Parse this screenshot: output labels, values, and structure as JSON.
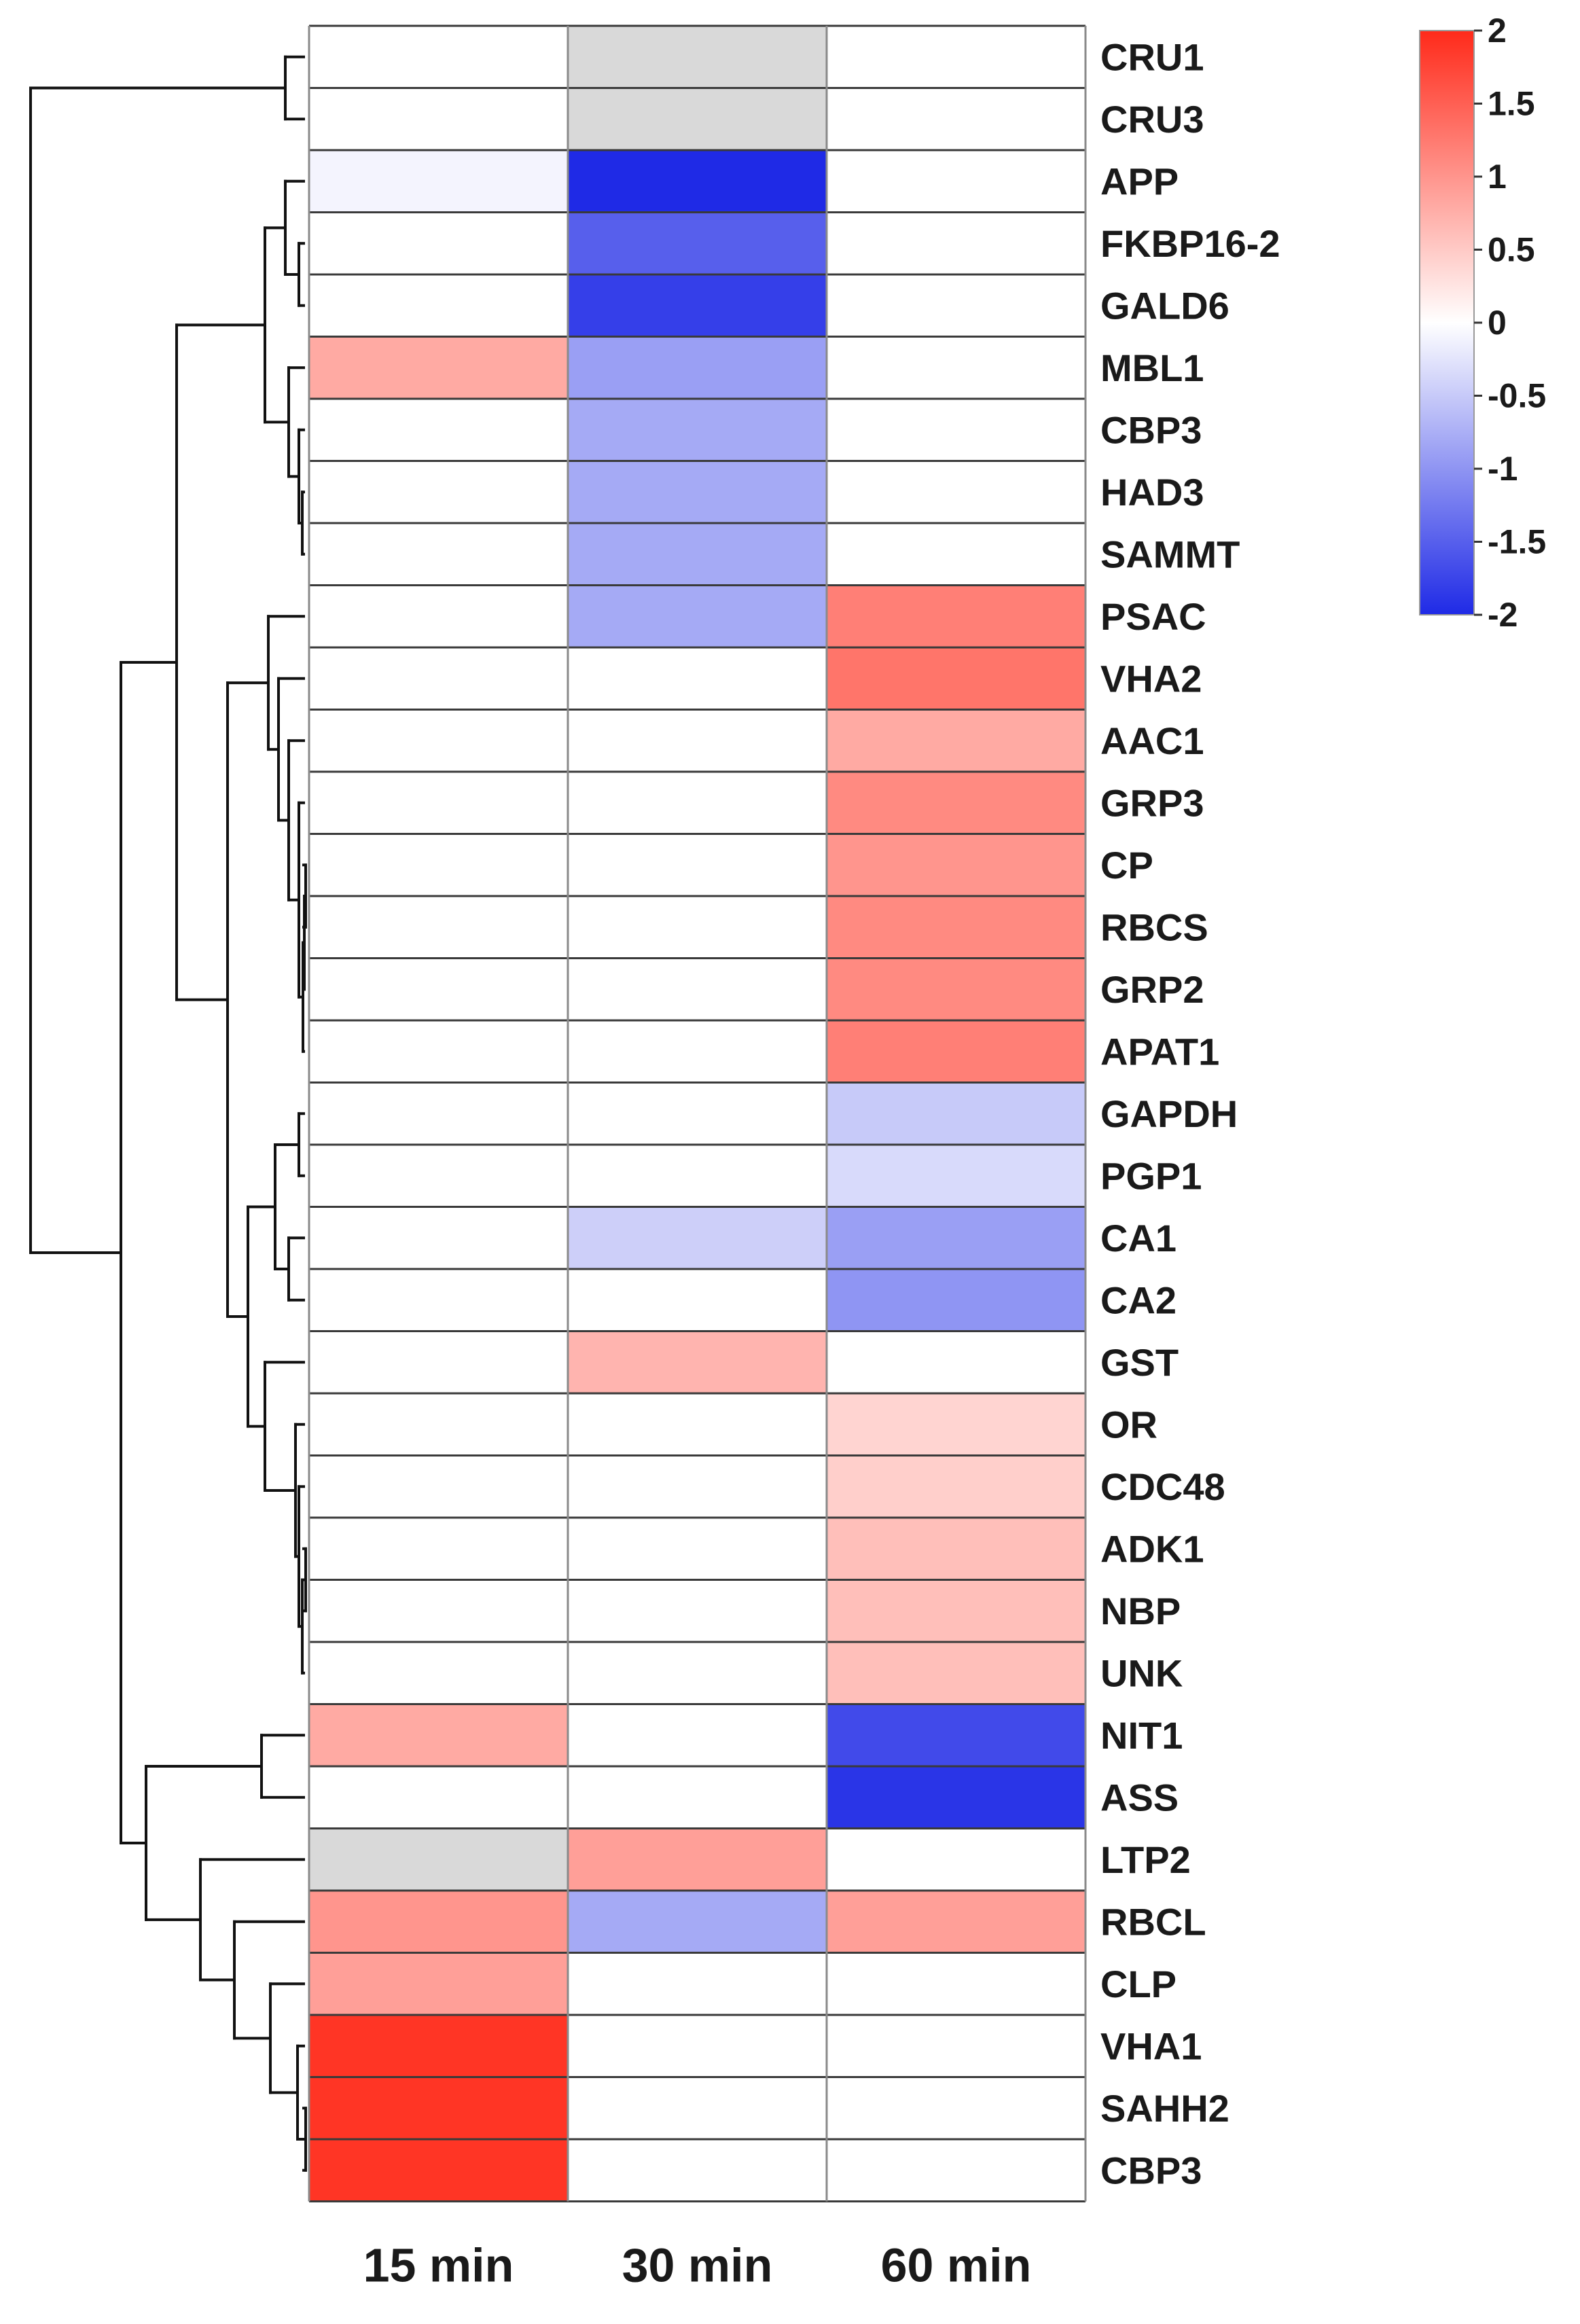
{
  "chart_data": {
    "type": "heatmap",
    "title": "",
    "columns": [
      "15 min",
      "30 min",
      "60 min"
    ],
    "rows": [
      "CRU1",
      "CRU3",
      "APP",
      "FKBP16-2",
      "GALD6",
      "MBL1",
      "CBP3",
      "HAD3",
      "SAMMT",
      "PSAC",
      "VHA2",
      "AAC1",
      "GRP3",
      "CP",
      "RBCS",
      "GRP2",
      "APAT1",
      "GAPDH",
      "PGP1",
      "CA1",
      "CA2",
      "GST",
      "OR",
      "CDC48",
      "ADK1",
      "NBP",
      "UNK",
      "NIT1",
      "ASS",
      "LTP2",
      "RBCL",
      "CLP",
      "VHA1",
      "SAHH2",
      "CBP3"
    ],
    "values": [
      [
        0,
        null,
        0
      ],
      [
        0,
        null,
        0
      ],
      [
        -0.1,
        -2,
        0
      ],
      [
        0,
        -1.5,
        0
      ],
      [
        0,
        -1.8,
        0
      ],
      [
        0.8,
        -0.9,
        0
      ],
      [
        0,
        -0.8,
        0
      ],
      [
        0,
        -0.8,
        0
      ],
      [
        0,
        -0.8,
        0
      ],
      [
        0,
        -0.8,
        1.2
      ],
      [
        0,
        0,
        1.3
      ],
      [
        0,
        0,
        0.8
      ],
      [
        0,
        0,
        1.1
      ],
      [
        0,
        0,
        1.0
      ],
      [
        0,
        0,
        1.1
      ],
      [
        0,
        0,
        1.1
      ],
      [
        0,
        0,
        1.2
      ],
      [
        0,
        0,
        -0.5
      ],
      [
        0,
        0,
        -0.35
      ],
      [
        0,
        -0.45,
        -0.9
      ],
      [
        0,
        0,
        -1.0
      ],
      [
        0,
        0.7,
        0
      ],
      [
        0,
        0,
        0.4
      ],
      [
        0,
        0,
        0.45
      ],
      [
        0,
        0,
        0.6
      ],
      [
        0,
        0,
        0.6
      ],
      [
        0,
        0,
        0.6
      ],
      [
        0.8,
        0,
        -1.7
      ],
      [
        0,
        0,
        -1.9
      ],
      [
        null,
        0.9,
        0
      ],
      [
        1.0,
        -0.8,
        0.9
      ],
      [
        0.9,
        0,
        0
      ],
      [
        1.9,
        0,
        0
      ],
      [
        1.9,
        0,
        0
      ],
      [
        1.9,
        0,
        0
      ]
    ],
    "missing_color": "#d9d9d9",
    "colorbar": {
      "range": [
        -2,
        2
      ],
      "ticks": [
        2,
        1.5,
        1,
        0.5,
        0,
        -0.5,
        -1,
        -1.5,
        -2
      ],
      "tick_labels": [
        "2",
        "1.5",
        "1",
        "0.5",
        "0",
        "-0.5",
        "-1",
        "-1.5",
        "-2"
      ],
      "low_color": "#1f2ae6",
      "mid_color": "#ffffff",
      "high_color": "#ff2a1a"
    },
    "dendrogram": "row clustering tree shown on left side"
  }
}
